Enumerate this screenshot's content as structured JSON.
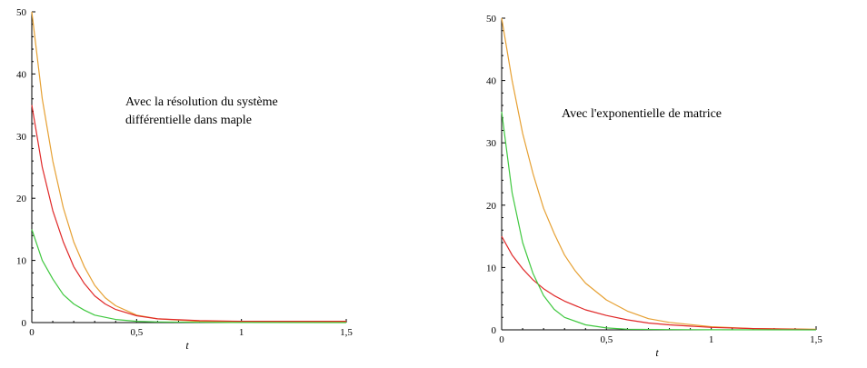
{
  "chart_data": [
    {
      "type": "line",
      "xlabel": "t",
      "ylabel": "",
      "xlim": [
        0,
        1.5
      ],
      "ylim": [
        0,
        50
      ],
      "x_ticks": [
        "0",
        "0,5",
        "1",
        "1,5"
      ],
      "y_ticks": [
        "0",
        "10",
        "20",
        "30",
        "40",
        "50"
      ],
      "annotation": [
        "Avec la résolution du système",
        "différentielle dans maple"
      ],
      "grid": false,
      "series": [
        {
          "color": "#e6a032",
          "x": [
            0,
            0.05,
            0.1,
            0.15,
            0.2,
            0.25,
            0.3,
            0.35,
            0.4,
            0.5,
            0.6,
            0.8,
            1.0,
            1.2,
            1.5
          ],
          "y": [
            50,
            36,
            26,
            18.5,
            13,
            9,
            6,
            4,
            2.7,
            1.2,
            0.6,
            0.2,
            0.1,
            0.1,
            0.1
          ]
        },
        {
          "color": "#e02828",
          "x": [
            0,
            0.05,
            0.1,
            0.15,
            0.2,
            0.25,
            0.3,
            0.35,
            0.4,
            0.5,
            0.6,
            0.8,
            1.0,
            1.2,
            1.5
          ],
          "y": [
            35,
            25,
            18,
            13,
            9,
            6.3,
            4.3,
            3,
            2.1,
            1.1,
            0.6,
            0.3,
            0.2,
            0.2,
            0.2
          ]
        },
        {
          "color": "#40c840",
          "x": [
            0,
            0.05,
            0.1,
            0.15,
            0.2,
            0.25,
            0.3,
            0.4,
            0.5,
            0.6,
            0.8,
            1.0,
            1.5
          ],
          "y": [
            15,
            10,
            7,
            4.5,
            3,
            2,
            1.2,
            0.5,
            0.2,
            0.1,
            0.05,
            0.02,
            0
          ]
        }
      ]
    },
    {
      "type": "line",
      "xlabel": "t",
      "ylabel": "",
      "xlim": [
        0,
        1.5
      ],
      "ylim": [
        0,
        50
      ],
      "x_ticks": [
        "0",
        "0,5",
        "1",
        "1,5"
      ],
      "y_ticks": [
        "0",
        "10",
        "20",
        "30",
        "40",
        "50"
      ],
      "annotation": [
        "Avec l'exponentielle de matrice"
      ],
      "grid": false,
      "series": [
        {
          "color": "#e6a032",
          "x": [
            0,
            0.05,
            0.1,
            0.15,
            0.2,
            0.25,
            0.3,
            0.35,
            0.4,
            0.5,
            0.6,
            0.7,
            0.8,
            1.0,
            1.2,
            1.5
          ],
          "y": [
            50,
            40,
            31.5,
            25,
            19.5,
            15.5,
            12,
            9.5,
            7.5,
            4.8,
            3,
            1.8,
            1.2,
            0.5,
            0.2,
            0.1
          ]
        },
        {
          "color": "#e02828",
          "x": [
            0,
            0.05,
            0.1,
            0.15,
            0.2,
            0.25,
            0.3,
            0.4,
            0.5,
            0.6,
            0.7,
            0.8,
            1.0,
            1.2,
            1.5
          ],
          "y": [
            15,
            12,
            9.8,
            8,
            6.6,
            5.5,
            4.6,
            3.2,
            2.3,
            1.6,
            1.1,
            0.8,
            0.4,
            0.2,
            0.05
          ]
        },
        {
          "color": "#40c840",
          "x": [
            0,
            0.05,
            0.1,
            0.15,
            0.2,
            0.25,
            0.3,
            0.4,
            0.5,
            0.6,
            0.8,
            1.0,
            1.5
          ],
          "y": [
            35,
            22,
            14,
            9,
            5.5,
            3.3,
            2,
            0.8,
            0.3,
            0.1,
            0.05,
            0.02,
            0
          ]
        }
      ]
    }
  ]
}
